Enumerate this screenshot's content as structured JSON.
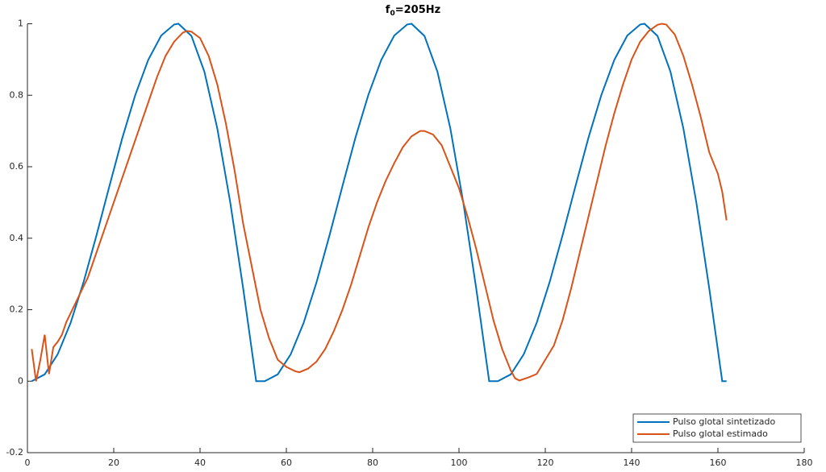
{
  "chart_data": {
    "type": "line",
    "title_parts": [
      "f",
      "0",
      "=205Hz"
    ],
    "xlim": [
      0,
      180
    ],
    "xticks": [
      0,
      20,
      40,
      60,
      80,
      100,
      120,
      140,
      160,
      180
    ],
    "ylim": [
      -0.2,
      1
    ],
    "yticks": [
      -0.2,
      0,
      0.2,
      0.4,
      0.6,
      0.8,
      1
    ],
    "legend": "bottom-right",
    "series": [
      {
        "name": "Pulso glotal sintetizado",
        "color": "#0072bd",
        "x": [
          1,
          4,
          7,
          10,
          13,
          16,
          19,
          22,
          25,
          28,
          31,
          34,
          35,
          38,
          41,
          44,
          47,
          50,
          53,
          54,
          55,
          58,
          61,
          64,
          67,
          70,
          73,
          76,
          79,
          82,
          85,
          88,
          89,
          92,
          95,
          98,
          101,
          104,
          107,
          108,
          109,
          112,
          115,
          118,
          121,
          124,
          127,
          130,
          133,
          136,
          139,
          142,
          143,
          146,
          149,
          152,
          155,
          158,
          161,
          162
        ],
        "values": [
          0,
          0.019,
          0.075,
          0.163,
          0.277,
          0.408,
          0.546,
          0.681,
          0.801,
          0.899,
          0.967,
          0.998,
          1,
          0.966,
          0.866,
          0.707,
          0.5,
          0.259,
          0,
          0,
          0,
          0.019,
          0.075,
          0.163,
          0.277,
          0.408,
          0.546,
          0.681,
          0.801,
          0.899,
          0.967,
          0.998,
          1,
          0.966,
          0.866,
          0.707,
          0.5,
          0.259,
          0,
          0,
          0,
          0.019,
          0.075,
          0.163,
          0.277,
          0.408,
          0.546,
          0.681,
          0.801,
          0.899,
          0.967,
          0.998,
          1,
          0.966,
          0.866,
          0.707,
          0.5,
          0.259,
          0,
          0
        ]
      },
      {
        "name": "Pulso glotal estimado",
        "color": "#d95319",
        "x": [
          1,
          2,
          3,
          4,
          5,
          6,
          7,
          8,
          9,
          10,
          12,
          14,
          16,
          18,
          20,
          22,
          24,
          26,
          28,
          30,
          32,
          34,
          36,
          37,
          38,
          40,
          42,
          44,
          46,
          48,
          50,
          52,
          54,
          56,
          58,
          60,
          62,
          63,
          65,
          67,
          69,
          71,
          73,
          75,
          77,
          79,
          81,
          83,
          85,
          87,
          89,
          91,
          92,
          94,
          96,
          98,
          100,
          102,
          104,
          106,
          108,
          110,
          112,
          113,
          114,
          116,
          118,
          120,
          122,
          124,
          126,
          128,
          130,
          132,
          134,
          136,
          138,
          140,
          142,
          144,
          146,
          147,
          148,
          150,
          152,
          154,
          156,
          158,
          160,
          161,
          162
        ],
        "values": [
          0.09,
          0,
          0.06,
          0.13,
          0.02,
          0.095,
          0.11,
          0.13,
          0.165,
          0.19,
          0.24,
          0.29,
          0.36,
          0.43,
          0.5,
          0.57,
          0.64,
          0.71,
          0.78,
          0.85,
          0.91,
          0.95,
          0.975,
          0.98,
          0.978,
          0.96,
          0.91,
          0.83,
          0.72,
          0.59,
          0.44,
          0.32,
          0.2,
          0.12,
          0.06,
          0.04,
          0.028,
          0.025,
          0.035,
          0.055,
          0.09,
          0.14,
          0.2,
          0.27,
          0.35,
          0.43,
          0.5,
          0.56,
          0.61,
          0.655,
          0.685,
          0.7,
          0.7,
          0.69,
          0.66,
          0.6,
          0.54,
          0.46,
          0.37,
          0.27,
          0.17,
          0.09,
          0.03,
          0.008,
          0.002,
          0.01,
          0.02,
          0.06,
          0.1,
          0.17,
          0.26,
          0.36,
          0.46,
          0.56,
          0.66,
          0.75,
          0.83,
          0.9,
          0.95,
          0.98,
          0.997,
          1,
          0.998,
          0.97,
          0.91,
          0.83,
          0.74,
          0.64,
          0.58,
          0.53,
          0.45
        ]
      }
    ]
  }
}
